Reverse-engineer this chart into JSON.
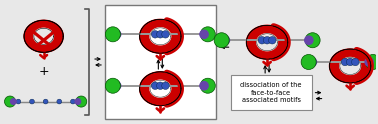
{
  "bg_color": "#e8e8e8",
  "panel_bg": "#ffffff",
  "cage_color": "#cc0000",
  "cage_dark": "#880000",
  "axle_color": "#aaaacc",
  "stopper_green": "#22bb22",
  "stopper_green2": "#44dd44",
  "bead_blue": "#3355bb",
  "bead_blue2": "#6688cc",
  "arrow_color": "#000000",
  "box_edge_color": "#888888",
  "text_box_label": "dissociation of the\nface-to-face\nassociated motifs",
  "text_fontsize": 4.8
}
